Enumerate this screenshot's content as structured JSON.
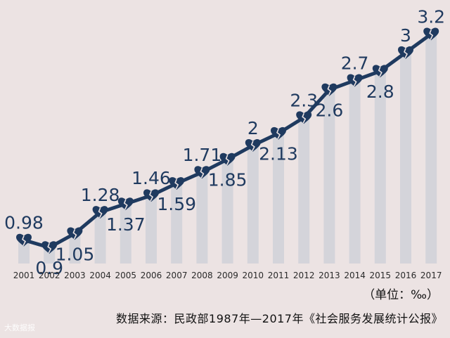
{
  "chart_data": {
    "type": "line",
    "categories": [
      "2001",
      "2002",
      "2003",
      "2004",
      "2005",
      "2006",
      "2007",
      "2008",
      "2009",
      "2010",
      "2011",
      "2012",
      "2013",
      "2014",
      "2015",
      "2016",
      "2017"
    ],
    "values": [
      0.98,
      0.9,
      1.05,
      1.28,
      1.37,
      1.46,
      1.59,
      1.71,
      1.85,
      2,
      2.13,
      2.3,
      2.6,
      2.7,
      2.8,
      3,
      3.2
    ],
    "labels": [
      "0.98",
      "0.9",
      "1.05",
      "1.28",
      "1.37",
      "1.46",
      "1.59",
      "1.71",
      "1.85",
      "2",
      "2.13",
      "2.3",
      "2.6",
      "2.7",
      "2.8",
      "3",
      "3.2"
    ],
    "label_positions": [
      "above",
      "below",
      "below",
      "above",
      "below",
      "above",
      "below",
      "above",
      "below",
      "above",
      "below",
      "above",
      "below",
      "above",
      "below",
      "above",
      "above"
    ],
    "title": "",
    "xlabel": "",
    "ylabel": "",
    "ylim": [
      0.5,
      3.4
    ],
    "grid": false,
    "colors": {
      "line": "#1f3a5f",
      "bars": "#d4d4da",
      "labels": "#1f3a5f",
      "background": "#ece3e3"
    },
    "marker_icon": "broken-heart-icon"
  },
  "footer": {
    "unit": "（单位：‰）",
    "source": "数据来源：民政部1987年—2017年《社会服务发展统计公报》",
    "watermark": "大数据报"
  }
}
